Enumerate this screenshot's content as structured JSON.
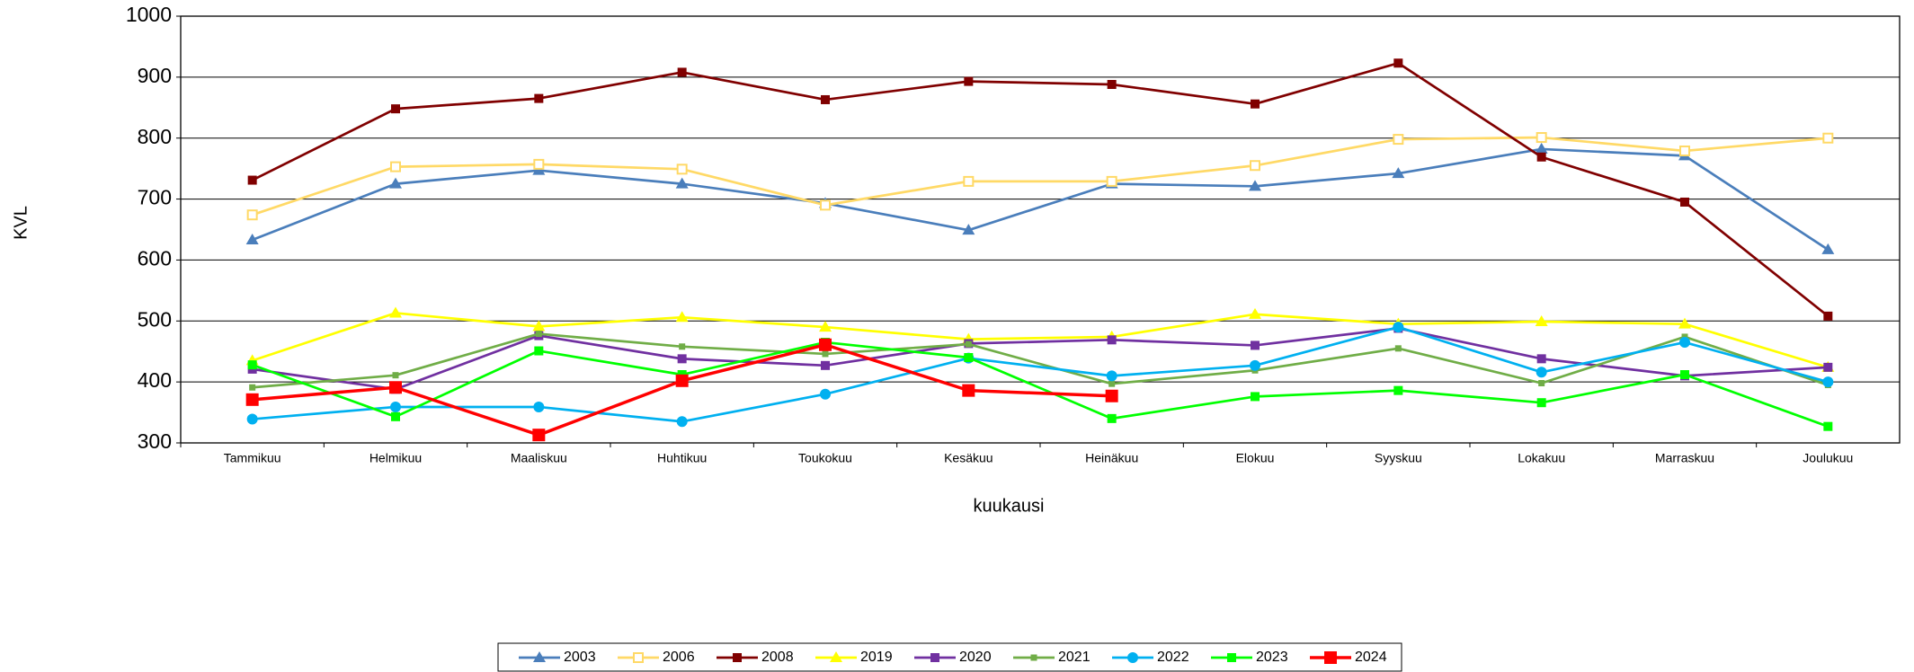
{
  "chart_data": {
    "type": "line",
    "y_label": "KVL",
    "x_label": "kuukausi",
    "categories": [
      "Tammikuu",
      "Helmikuu",
      "Maaliskuu",
      "Huhtikuu",
      "Toukokuu",
      "Kesäkuu",
      "Heinäkuu",
      "Elokuu",
      "Syyskuu",
      "Lokakuu",
      "Marraskuu",
      "Joulukuu"
    ],
    "ylim": [
      300,
      1000
    ],
    "yticks": [
      300,
      400,
      500,
      600,
      700,
      800,
      900,
      1000
    ],
    "grid": true,
    "series": [
      {
        "name": "2003",
        "color": "#4a7ebb",
        "marker": "triangle",
        "values": [
          633,
          725,
          747,
          725,
          693,
          649,
          725,
          721,
          742,
          782,
          771,
          617
        ]
      },
      {
        "name": "2006",
        "color": "#ffd966",
        "marker": "open-square",
        "values": [
          674,
          753,
          757,
          749,
          690,
          729,
          729,
          755,
          798,
          801,
          779,
          800
        ]
      },
      {
        "name": "2008",
        "color": "#800000",
        "marker": "square",
        "values": [
          731,
          848,
          865,
          908,
          863,
          893,
          888,
          856,
          923,
          769,
          695,
          508
        ]
      },
      {
        "name": "2019",
        "color": "#ffff00",
        "marker": "triangle",
        "values": [
          435,
          513,
          491,
          506,
          490,
          470,
          474,
          511,
          495,
          499,
          495,
          424
        ]
      },
      {
        "name": "2020",
        "color": "#7030a0",
        "marker": "square",
        "values": [
          421,
          388,
          476,
          438,
          427,
          463,
          469,
          460,
          488,
          438,
          410,
          424
        ]
      },
      {
        "name": "2021",
        "color": "#70ad47",
        "marker": "small-square",
        "values": [
          391,
          411,
          479,
          458,
          446,
          462,
          397,
          419,
          455,
          398,
          474,
          395
        ]
      },
      {
        "name": "2022",
        "color": "#00b0f0",
        "marker": "circle",
        "values": [
          339,
          359,
          359,
          335,
          380,
          439,
          410,
          427,
          490,
          416,
          465,
          400
        ]
      },
      {
        "name": "2023",
        "color": "#00ff00",
        "marker": "square",
        "values": [
          428,
          343,
          451,
          412,
          465,
          440,
          340,
          376,
          386,
          366,
          412,
          327
        ]
      },
      {
        "name": "2024",
        "color": "#ff0000",
        "marker": "big-square",
        "values": [
          371,
          391,
          313,
          402,
          461,
          386,
          377,
          null,
          null,
          null,
          null,
          null
        ]
      }
    ]
  }
}
